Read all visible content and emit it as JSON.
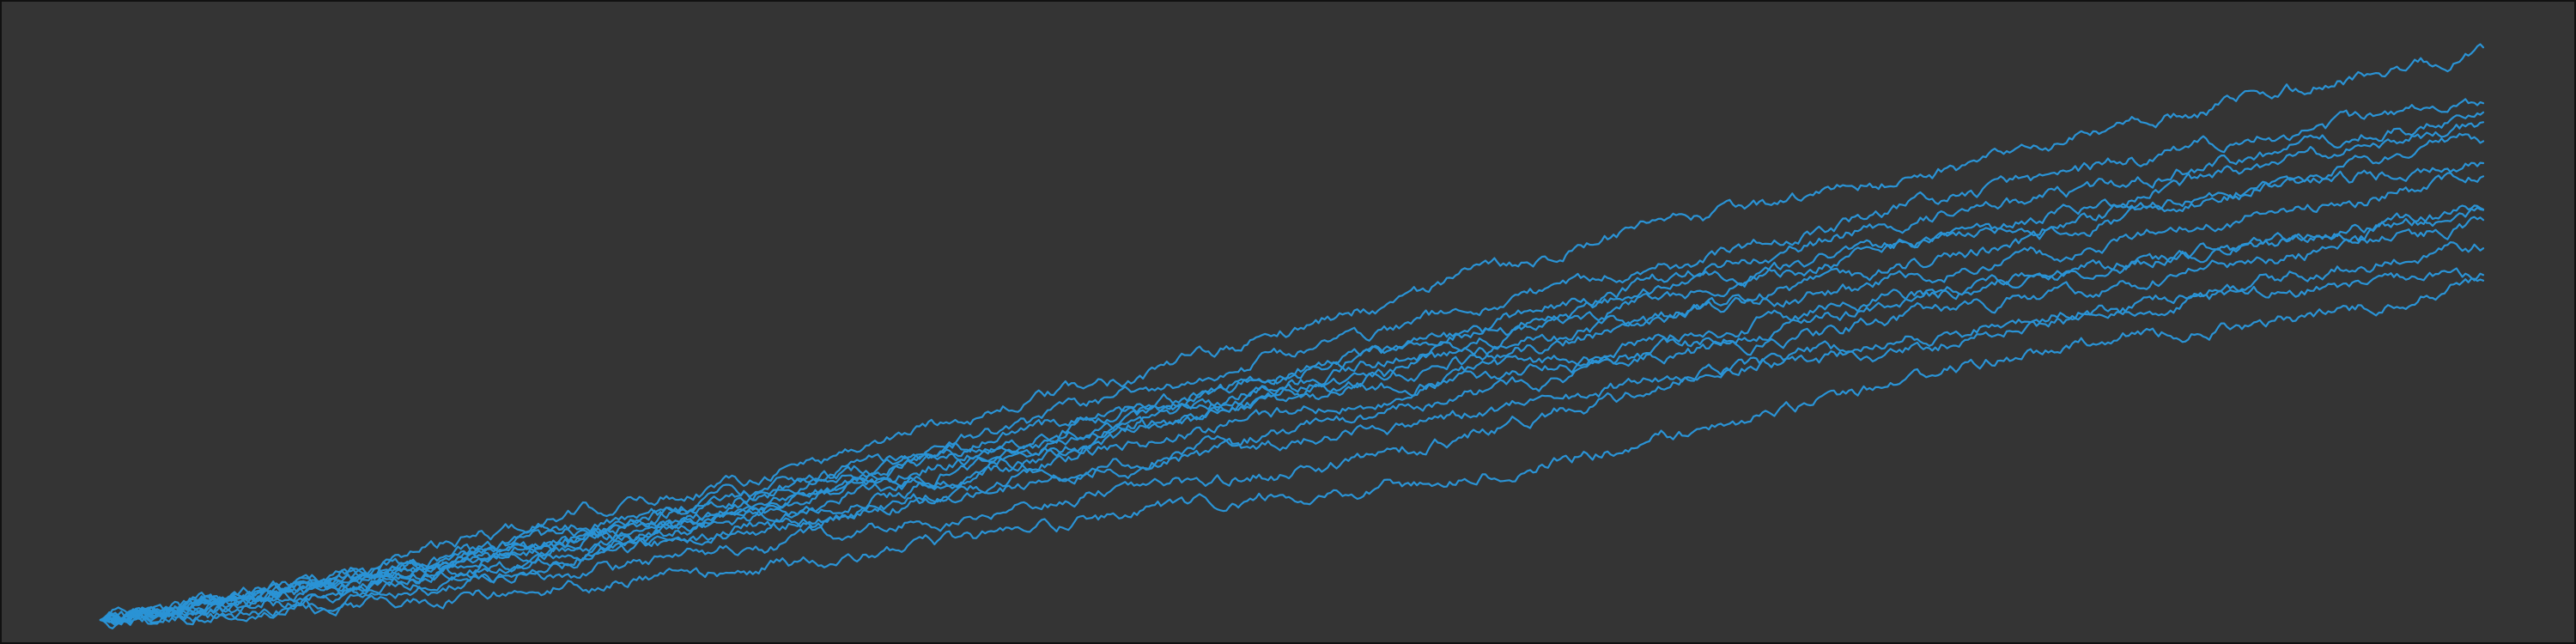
{
  "chart_data": {
    "type": "line",
    "title": "",
    "xlabel": "",
    "ylabel": "",
    "grid": false,
    "legend": "none",
    "colors": {
      "background": "#343434",
      "frame": "#111111",
      "line": "#2a93d5"
    },
    "xlim": [
      0,
      100
    ],
    "ylim": [
      0,
      100
    ],
    "x": [
      0,
      5,
      10,
      15,
      20,
      25,
      30,
      35,
      40,
      45,
      50,
      55,
      60,
      65,
      70,
      75,
      80,
      85,
      90,
      95,
      100
    ],
    "series": [
      {
        "values": [
          0,
          4,
          8,
          13,
          18,
          22,
          27,
          33,
          38,
          43,
          49,
          55,
          61,
          66,
          70,
          74,
          78,
          83,
          88,
          92,
          96
        ]
      },
      {
        "values": [
          0,
          3,
          7,
          11,
          15,
          20,
          24,
          29,
          34,
          40,
          45,
          50,
          55,
          59,
          64,
          69,
          73,
          77,
          81,
          84,
          87
        ]
      },
      {
        "values": [
          0,
          4,
          7,
          11,
          15,
          19,
          24,
          28,
          33,
          37,
          42,
          47,
          52,
          57,
          62,
          67,
          70,
          74,
          78,
          82,
          86
        ]
      },
      {
        "values": [
          0,
          3,
          6,
          10,
          14,
          19,
          23,
          27,
          32,
          37,
          41,
          46,
          50,
          55,
          59,
          63,
          67,
          71,
          76,
          80,
          84
        ]
      },
      {
        "values": [
          0,
          3,
          6,
          9,
          13,
          17,
          21,
          26,
          30,
          35,
          40,
          45,
          49,
          54,
          58,
          62,
          66,
          69,
          73,
          77,
          81
        ]
      },
      {
        "values": [
          0,
          2,
          5,
          9,
          13,
          17,
          22,
          27,
          31,
          35,
          39,
          43,
          47,
          51,
          55,
          59,
          63,
          68,
          72,
          75,
          77
        ]
      },
      {
        "values": [
          0,
          3,
          7,
          10,
          13,
          16,
          20,
          24,
          28,
          33,
          38,
          42,
          46,
          50,
          54,
          57,
          61,
          64,
          68,
          71,
          75
        ]
      },
      {
        "values": [
          0,
          2,
          5,
          8,
          12,
          16,
          19,
          23,
          27,
          31,
          35,
          38,
          42,
          45,
          49,
          53,
          57,
          60,
          63,
          66,
          69
        ]
      },
      {
        "values": [
          0,
          3,
          6,
          10,
          13,
          17,
          21,
          25,
          29,
          33,
          37,
          40,
          43,
          47,
          51,
          54,
          57,
          60,
          63,
          66,
          69
        ]
      },
      {
        "values": [
          0,
          2,
          4,
          7,
          10,
          14,
          17,
          21,
          25,
          28,
          32,
          36,
          40,
          44,
          47,
          51,
          54,
          57,
          60,
          64,
          67
        ]
      },
      {
        "values": [
          0,
          2,
          5,
          8,
          11,
          14,
          17,
          20,
          24,
          27,
          30,
          33,
          37,
          40,
          44,
          47,
          50,
          54,
          57,
          60,
          63
        ]
      },
      {
        "values": [
          0,
          1,
          3,
          6,
          8,
          11,
          14,
          17,
          20,
          23,
          25,
          29,
          34,
          39,
          43,
          45,
          49,
          52,
          55,
          57,
          58
        ]
      },
      {
        "values": [
          0,
          1,
          2,
          4,
          6,
          8,
          10,
          13,
          16,
          19,
          21,
          23,
          26,
          30,
          35,
          40,
          44,
          48,
          50,
          53,
          57
        ]
      }
    ]
  }
}
